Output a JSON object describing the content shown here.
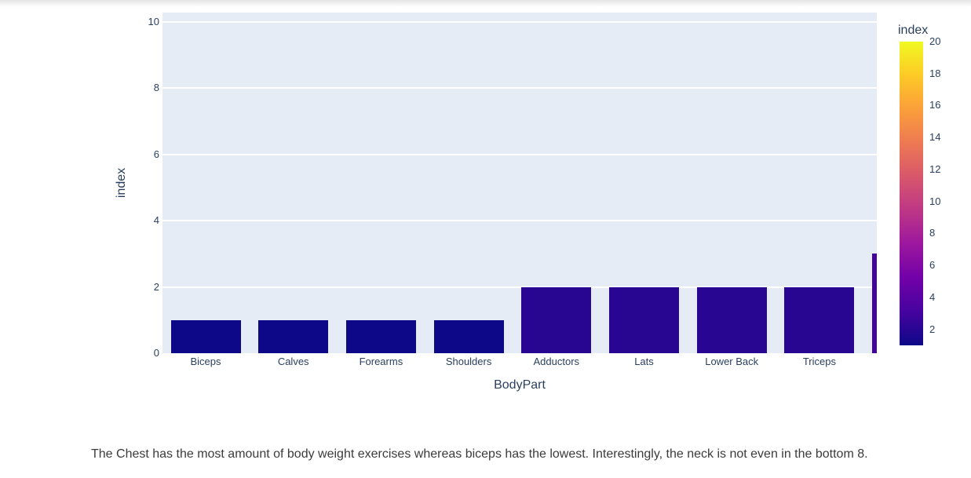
{
  "caption": "The Chest has the most amount of body weight exercises whereas biceps has the lowest. Interestingly, the neck is not even in the bottom 8.",
  "chart_data": {
    "type": "bar",
    "title": "",
    "xlabel": "BodyPart",
    "ylabel": "index",
    "categories": [
      "Biceps",
      "Calves",
      "Forearms",
      "Shoulders",
      "Adductors",
      "Lats",
      "Lower Back",
      "Triceps"
    ],
    "values": [
      1,
      1,
      1,
      1,
      2,
      2,
      2,
      2
    ],
    "bar_colors": [
      "#0d0887",
      "#0d0887",
      "#0d0887",
      "#0d0887",
      "#280692",
      "#280692",
      "#280692",
      "#280692"
    ],
    "clipped_bar": {
      "value": 3,
      "color": "#43039e"
    },
    "ylim": [
      0,
      10.28
    ],
    "yticks": [
      0,
      2,
      4,
      6,
      8,
      10
    ],
    "grid": true,
    "plot_bg": "#e5ecf6",
    "grid_color": "#ffffff",
    "tick_color": "#2a3f5f",
    "colorbar": {
      "title": "index",
      "min": 1,
      "max": 20,
      "ticks": [
        2,
        4,
        6,
        8,
        10,
        12,
        14,
        16,
        18,
        20
      ],
      "colorscale": "plasma",
      "colorscale_stops": [
        "#0d0887",
        "#46039f",
        "#7201a8",
        "#9c179e",
        "#bd3786",
        "#d8576b",
        "#ed7953",
        "#fb9f3a",
        "#fdca26",
        "#f0f921"
      ]
    }
  }
}
